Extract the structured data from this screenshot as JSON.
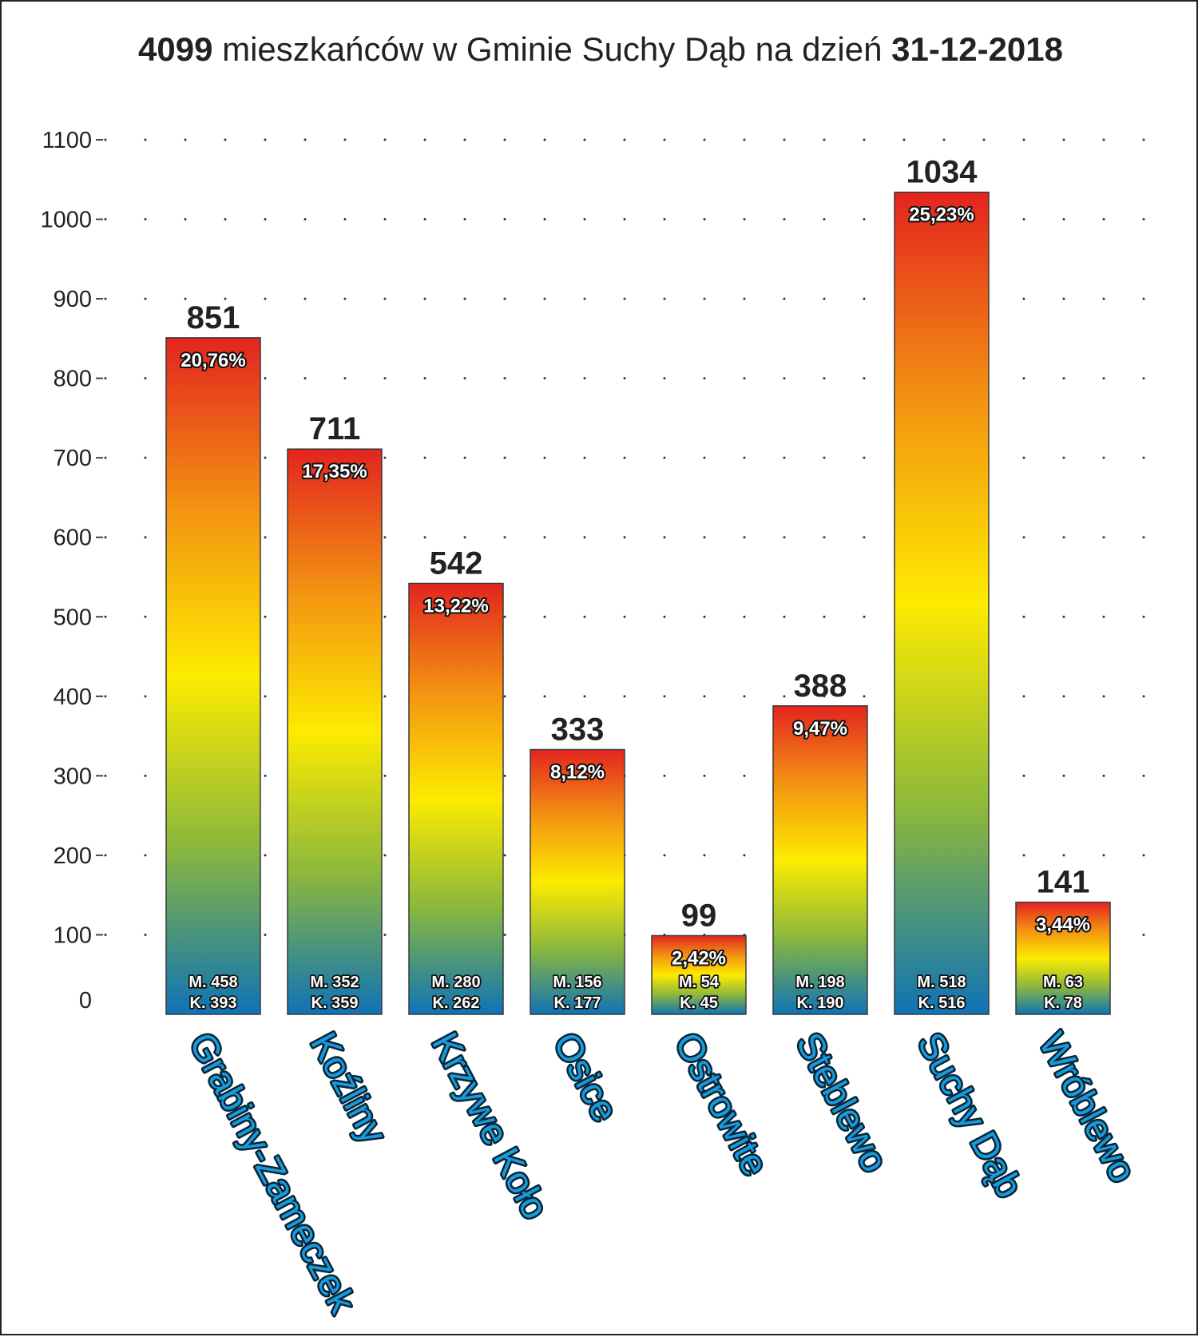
{
  "title": {
    "count": "4099",
    "text": "mieszkańców w Gminie Suchy Dąb na dzień",
    "date": "31-12-2018"
  },
  "chart_data": {
    "type": "bar",
    "ylim": [
      0,
      1100
    ],
    "yticks": [
      0,
      100,
      200,
      300,
      400,
      500,
      600,
      700,
      800,
      900,
      1000,
      1100
    ],
    "grid": true,
    "colors": {
      "top": "#e3241f",
      "upper": "#f39212",
      "middle": "#fdeb00",
      "lower": "#8cb83c",
      "bottom": "#0f73b6"
    },
    "bars": [
      {
        "category": "Grabiny-Zameczek",
        "value": 851,
        "percent": "20,76%",
        "men": "M. 458",
        "women": "K. 393"
      },
      {
        "category": "Koźliny",
        "value": 711,
        "percent": "17,35%",
        "men": "M. 352",
        "women": "K. 359"
      },
      {
        "category": "Krzywe Koło",
        "value": 542,
        "percent": "13,22%",
        "men": "M. 280",
        "women": "K. 262"
      },
      {
        "category": "Osice",
        "value": 333,
        "percent": "8,12%",
        "men": "M. 156",
        "women": "K. 177"
      },
      {
        "category": "Ostrowite",
        "value": 99,
        "percent": "2,42%",
        "men": "M. 54",
        "women": "K. 45"
      },
      {
        "category": "Steblewo",
        "value": 388,
        "percent": "9,47%",
        "men": "M. 198",
        "women": "K. 190"
      },
      {
        "category": "Suchy Dąb",
        "value": 1034,
        "percent": "25,23%",
        "men": "M. 518",
        "women": "K. 516"
      },
      {
        "category": "Wróblewo",
        "value": 141,
        "percent": "3,44%",
        "men": "M. 63",
        "women": "K. 78"
      }
    ]
  }
}
